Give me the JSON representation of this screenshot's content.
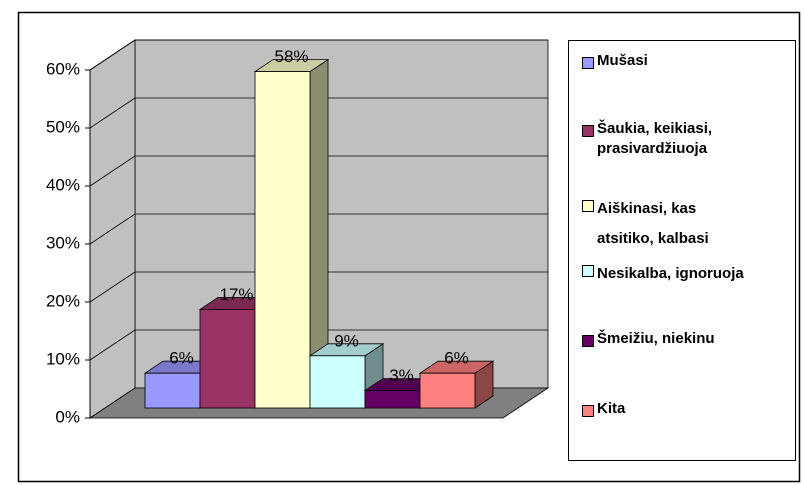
{
  "chart_data": {
    "type": "bar3d",
    "categories": [
      "Mušasi",
      "Šaukia, keikiasi, prasivardžiuoja",
      "Aiškinasi, kas atsitiko, kalbasi",
      "Nesikalba, ignoruoja",
      "Šmeižiu, niekinu",
      "Kita"
    ],
    "values": [
      6,
      17,
      58,
      9,
      3,
      6
    ],
    "value_labels": [
      "6%",
      "17%",
      "58%",
      "9%",
      "3%",
      "6%"
    ],
    "colors": [
      "#9999ff",
      "#993366",
      "#ffffcc",
      "#ccffff",
      "#660066",
      "#ff8080"
    ],
    "ylim": [
      0,
      60
    ],
    "yticks": [
      {
        "value": 0,
        "label": "0%"
      },
      {
        "value": 10,
        "label": "10%"
      },
      {
        "value": 20,
        "label": "20%"
      },
      {
        "value": 30,
        "label": "30%"
      },
      {
        "value": 40,
        "label": "40%"
      },
      {
        "value": 50,
        "label": "50%"
      },
      {
        "value": 60,
        "label": "60%"
      }
    ],
    "grid": true,
    "legend": "right"
  }
}
